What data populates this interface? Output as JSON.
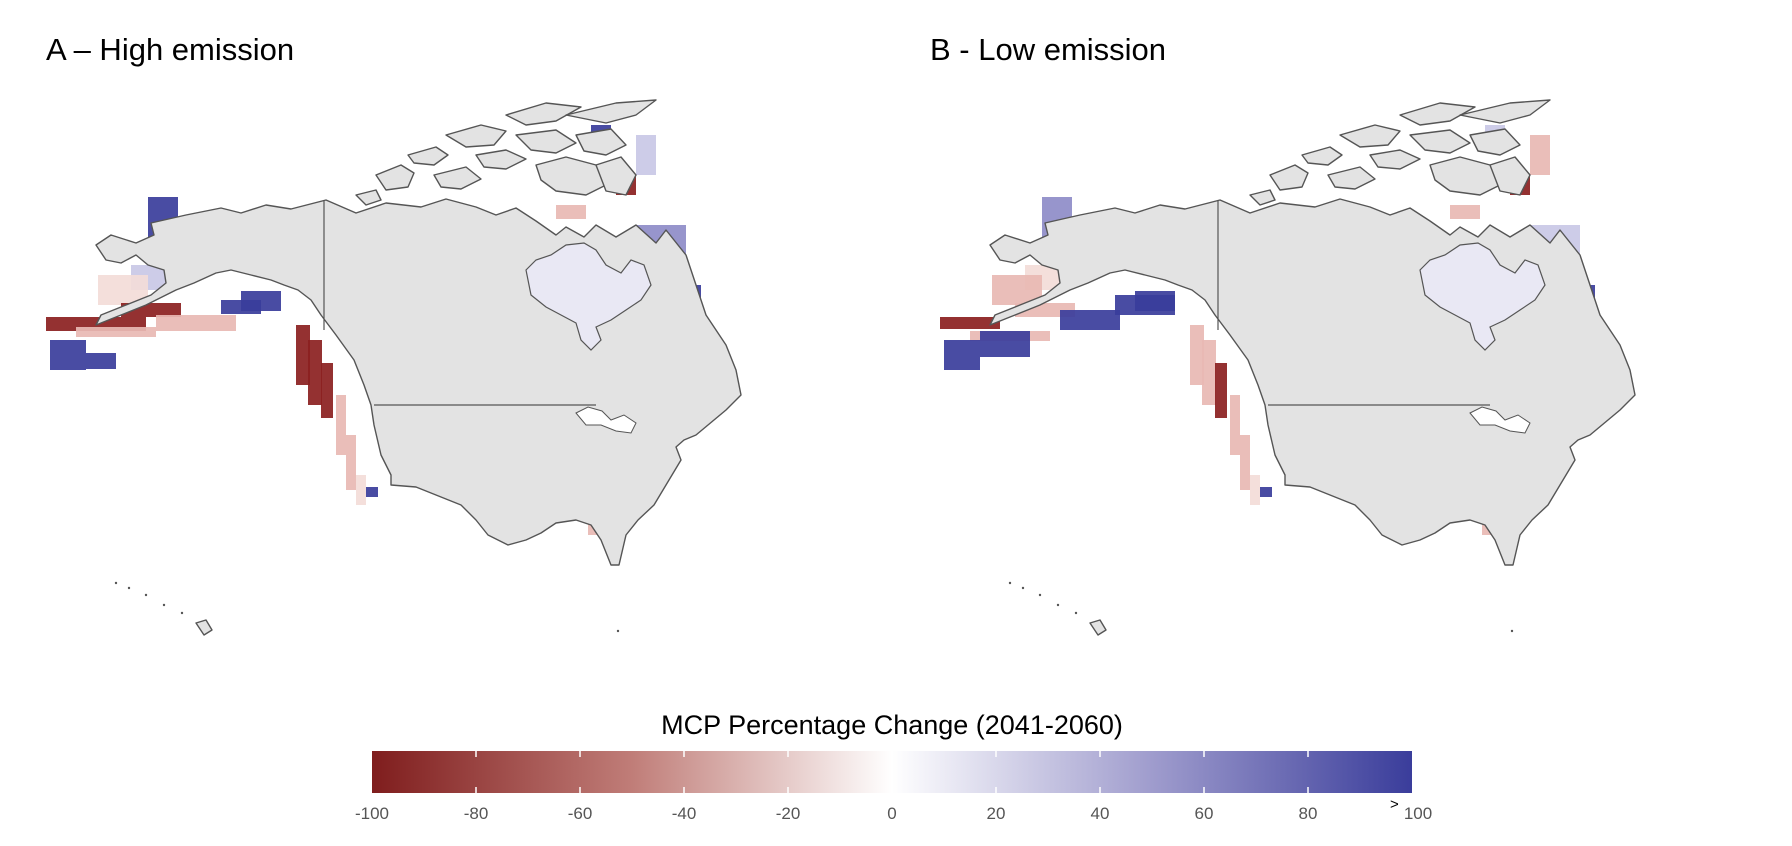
{
  "panels": {
    "a": {
      "title": "A – High emission"
    },
    "b": {
      "title": "B - Low emission"
    }
  },
  "legend": {
    "title": "MCP Percentage Change (2041-2060)",
    "min": -100,
    "max": 100,
    "overflow_marker": ">",
    "ticks": [
      "-100",
      "-80",
      "-60",
      "-40",
      "-20",
      "0",
      "20",
      "40",
      "60",
      "80",
      "100"
    ],
    "colors": {
      "low": "#7f1d1d",
      "mid": "#ffffff",
      "high": "#3a3d9b"
    }
  },
  "colors": {
    "land": "#e3e3e3",
    "coast": "#555555"
  }
}
